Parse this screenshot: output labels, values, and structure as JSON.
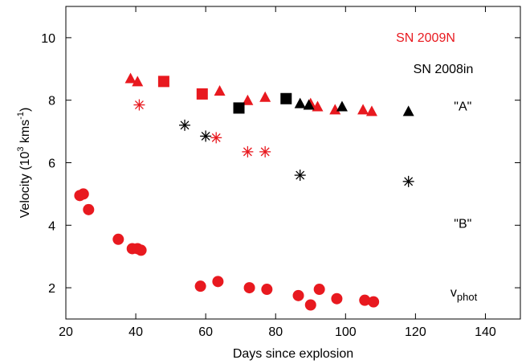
{
  "chart_data": {
    "type": "scatter",
    "xlabel": "Days since explosion",
    "ylabel": {
      "base": "Velocity (10",
      "sup1": "3",
      "mid": " kms",
      "sup2": "-1",
      "end": ")"
    },
    "xlim": [
      20,
      150
    ],
    "ylim": [
      1,
      11
    ],
    "x_ticks": [
      20,
      40,
      60,
      80,
      100,
      120,
      140
    ],
    "y_ticks": [
      2,
      4,
      6,
      8,
      10
    ],
    "grid": false,
    "legend": [
      {
        "label": "SN 2009N",
        "color": "#e8191f"
      },
      {
        "label": "SN 2008in",
        "color": "#000000"
      }
    ],
    "annotations": [
      {
        "text": "\"A\"",
        "x": 131,
        "y": 7.8
      },
      {
        "text": "\"B\"",
        "x": 131,
        "y": 4.05
      },
      {
        "base": "v",
        "sub": "phot",
        "x": 130,
        "y": 1.85
      }
    ],
    "series": [
      {
        "name": "SN 2009N",
        "marker": "triangle",
        "color": "#e8191f",
        "x": [
          38.5,
          40.5,
          64,
          72,
          77,
          90,
          92,
          97,
          105,
          107.5
        ],
        "y": [
          8.7,
          8.6,
          8.3,
          8.0,
          8.1,
          7.9,
          7.8,
          7.7,
          7.7,
          7.65
        ]
      },
      {
        "name": "SN 2009N",
        "marker": "square",
        "color": "#e8191f",
        "x": [
          48,
          59
        ],
        "y": [
          8.6,
          8.2
        ]
      },
      {
        "name": "SN 2009N",
        "marker": "asterisk",
        "color": "#e8191f",
        "x": [
          41,
          63,
          72,
          77
        ],
        "y": [
          7.85,
          6.8,
          6.35,
          6.35
        ]
      },
      {
        "name": "SN 2009N",
        "marker": "circle",
        "color": "#e8191f",
        "x": [
          24,
          25,
          26.5,
          35,
          39,
          40.5,
          41.5,
          58.5,
          63.5,
          72.5,
          77.5,
          86.5,
          90,
          92.5,
          97.5,
          105.5,
          108
        ],
        "y": [
          4.95,
          5.0,
          4.5,
          3.55,
          3.25,
          3.25,
          3.2,
          2.05,
          2.2,
          2.0,
          1.95,
          1.75,
          1.45,
          1.95,
          1.65,
          1.6,
          1.55
        ]
      },
      {
        "name": "SN 2008in",
        "marker": "square",
        "color": "#000000",
        "x": [
          69.5,
          83
        ],
        "y": [
          7.75,
          8.05
        ]
      },
      {
        "name": "SN 2008in",
        "marker": "triangle",
        "color": "#000000",
        "x": [
          87,
          89.5,
          99,
          118
        ],
        "y": [
          7.9,
          7.85,
          7.8,
          7.65
        ]
      },
      {
        "name": "SN 2008in",
        "marker": "asterisk",
        "color": "#000000",
        "x": [
          54,
          60,
          87,
          118
        ],
        "y": [
          7.2,
          6.85,
          5.6,
          5.4
        ]
      }
    ]
  }
}
